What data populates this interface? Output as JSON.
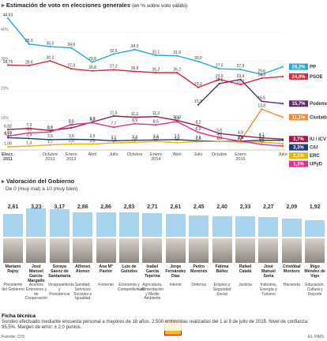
{
  "chart_data": [
    {
      "type": "line",
      "title": "Estimación de voto en elecciones generales",
      "subtitle": "(en % sobre voto válido)",
      "categories": [
        "Elecc. 2011",
        null,
        "Octubre 2012",
        "Enero 2013",
        "Abril",
        "Julio",
        "Octubre",
        "Enero 2014",
        "Abril",
        "Julio",
        "Octubre",
        "Enero 2015",
        null,
        "Julio"
      ],
      "ylim": [
        0,
        46
      ],
      "yticks": [
        {
          "value": 10,
          "label": "10%"
        },
        {
          "value": 20,
          "label": "20%"
        },
        {
          "value": 30,
          "label": "30%"
        },
        {
          "value": 40,
          "label": "40%"
        }
      ],
      "grid": true,
      "series": [
        {
          "name": "PP",
          "color": "#2aa6dd",
          "values": [
            44.63,
            35.9,
            35.0,
            34.6,
            29.8,
            32.5,
            34.0,
            32.1,
            31.9,
            30.0,
            27.5,
            27.3,
            25.6,
            28.2
          ],
          "value_labels": [
            "44,63",
            "35,9",
            "35,0",
            "34,6",
            "29,8",
            "32,5",
            "34,0",
            "32,1",
            "31,9",
            "30,0",
            "27,5",
            "27,3",
            "25,6",
            "28,2%"
          ]
        },
        {
          "name": "PSOE",
          "color": "#e3263a",
          "values": [
            28.76,
            28.6,
            30.2,
            27.5,
            26.8,
            27.2,
            26.6,
            26.2,
            26.2,
            21.2,
            23.9,
            22.2,
            24.3,
            24.9
          ],
          "value_labels": [
            "28,76",
            "28,6",
            "30,2",
            "27,5",
            "26,8",
            "27,2",
            "26,6",
            "26,2",
            "26,2",
            "21,2",
            "23,9",
            "22,2",
            "24,3",
            "24,9%"
          ]
        },
        {
          "name": "Podemos",
          "color": "#5e2a6b",
          "values": [
            null,
            null,
            null,
            null,
            null,
            null,
            null,
            null,
            null,
            15.3,
            22.5,
            23.9,
            16.5,
            15.7
          ],
          "value_labels": [
            null,
            null,
            null,
            null,
            null,
            null,
            null,
            null,
            null,
            "15,3",
            "22,5",
            "23,9",
            "16,5",
            "15,7%"
          ]
        },
        {
          "name": "Ciudadanos",
          "color": "#f28a2e",
          "values": [
            null,
            null,
            null,
            null,
            null,
            null,
            null,
            null,
            null,
            null,
            null,
            3.1,
            13.8,
            11.1
          ],
          "value_labels": [
            null,
            null,
            null,
            null,
            null,
            null,
            null,
            null,
            null,
            null,
            null,
            "3,1",
            "13,8",
            "11,1%"
          ]
        },
        {
          "name": "IU / ICV",
          "color": "#9e1b4b",
          "values": [
            6.92,
            7.3,
            6.6,
            7.5,
            9.5,
            11.5,
            11.1,
            11.3,
            10.0,
            8.2,
            5.6,
            4.8,
            4.1,
            3.7
          ],
          "value_labels": [
            "6,92",
            "7,3",
            "6,6",
            "7,5",
            "9,5",
            "11,5",
            "11,1",
            "11,3",
            "10,0",
            "8,2",
            "5,6",
            "4,8",
            "4,1",
            "3,7%"
          ]
        },
        {
          "name": "CiU",
          "color": "#1f3a7a",
          "values": [
            4.17,
            3.9,
            3.5,
            3.6,
            3.5,
            3.1,
            3.3,
            3.4,
            3.5,
            3.1,
            2.9,
            3.0,
            3.3,
            3.3
          ],
          "value_labels": [
            "4,17",
            "3,9",
            "3,5",
            "3,6",
            "3,5",
            "3,1",
            "3,3",
            "3,4",
            "3,5",
            "3,1",
            "2,9",
            "3,0",
            "3,3",
            "3,3%"
          ]
        },
        {
          "name": "ERC",
          "color": "#e8b400",
          "values": [
            1.06,
            1.3,
            1.7,
            2.0,
            2.0,
            2.4,
            2.6,
            2.9,
            2.5,
            2.8,
            2.9,
            2.7,
            2.7,
            2.1
          ],
          "value_labels": [
            "1,06",
            "1,3",
            "1,7",
            "2,0",
            "2,0",
            "2,4",
            "2,6",
            "2,9",
            "2,5",
            "2,8",
            "2,9",
            "2,7",
            "2,7",
            "2,1%"
          ]
        },
        {
          "name": "UPyD",
          "color": "#e0308c",
          "values": [
            4.69,
            5.8,
            6.1,
            8.6,
            9.2,
            7.7,
            8.9,
            8.5,
            9.6,
            6.0,
            4.2,
            3.0,
            1.9,
            1.3
          ],
          "value_labels": [
            "4,69",
            "5,8",
            "6,1",
            "8,6",
            "9,2",
            "7,7",
            "8,9",
            "8,5",
            "9,6",
            "6,0",
            "4,2",
            "3,0",
            "1,9",
            "1,3%"
          ]
        }
      ]
    },
    {
      "type": "bar",
      "title": "Valoración del Gobierno",
      "subtitle": "De 0 (muy mal) a 10 (muy bien)",
      "color": "#a9d4ef",
      "categories": [
        "Mariano Rajoy",
        "José Manuel García-Margallo",
        "Soraya Sáenz de Santamaría",
        "Alfonso Alonso",
        "Ana Mª Pastor",
        "Luis de Guindos",
        "Isabel García Tejerina",
        "Jorge Fernández Díaz",
        "Pedro Morenés",
        "Fátima Báñez",
        "Rafael Catalá",
        "José Manuel Soria",
        "Cristóbal Montoro",
        "Íñigo Méndez de Vigo"
      ],
      "roles": [
        "Presidente del Gobierno",
        "Asuntos Exteriores y de Cooperación",
        "Vicepresidenta y Presidencia",
        "Sanidad, Servicios Sociales e Igualdad",
        "Fomento",
        "Economía y Competitividad",
        "Agricultura, Alimentación y Medio Ambiente",
        "Interior",
        "Defensa",
        "Empleo y Seguridad Social",
        "Justicia",
        "Industria, Energía y Turismo",
        "Hacienda",
        "Educación, Cultura y Deporte"
      ],
      "values": [
        2.61,
        3.23,
        3.17,
        2.86,
        2.86,
        2.83,
        2.71,
        2.61,
        2.45,
        2.4,
        2.33,
        2.27,
        2.09,
        1.92
      ],
      "value_labels": [
        "2,61",
        "3,23",
        "3,17",
        "2,86",
        "2,86",
        "2,83",
        "2,71",
        "2,61",
        "2,45",
        "2,40",
        "2,33",
        "2,27",
        "2,09",
        "1,92"
      ]
    }
  ],
  "footer": {
    "title": "Ficha técnica",
    "text": "Sondeo efectuado mediante encuesta personal a mayores de 18 años. 2.500 entrevistas realizadas del 1 al 9 de julio de 2015. Nivel de confianza: 95,5%. Margen de error: ± 2,0 puntos.",
    "source": "Fuente: CIS",
    "brand": "EL PAÍS"
  }
}
